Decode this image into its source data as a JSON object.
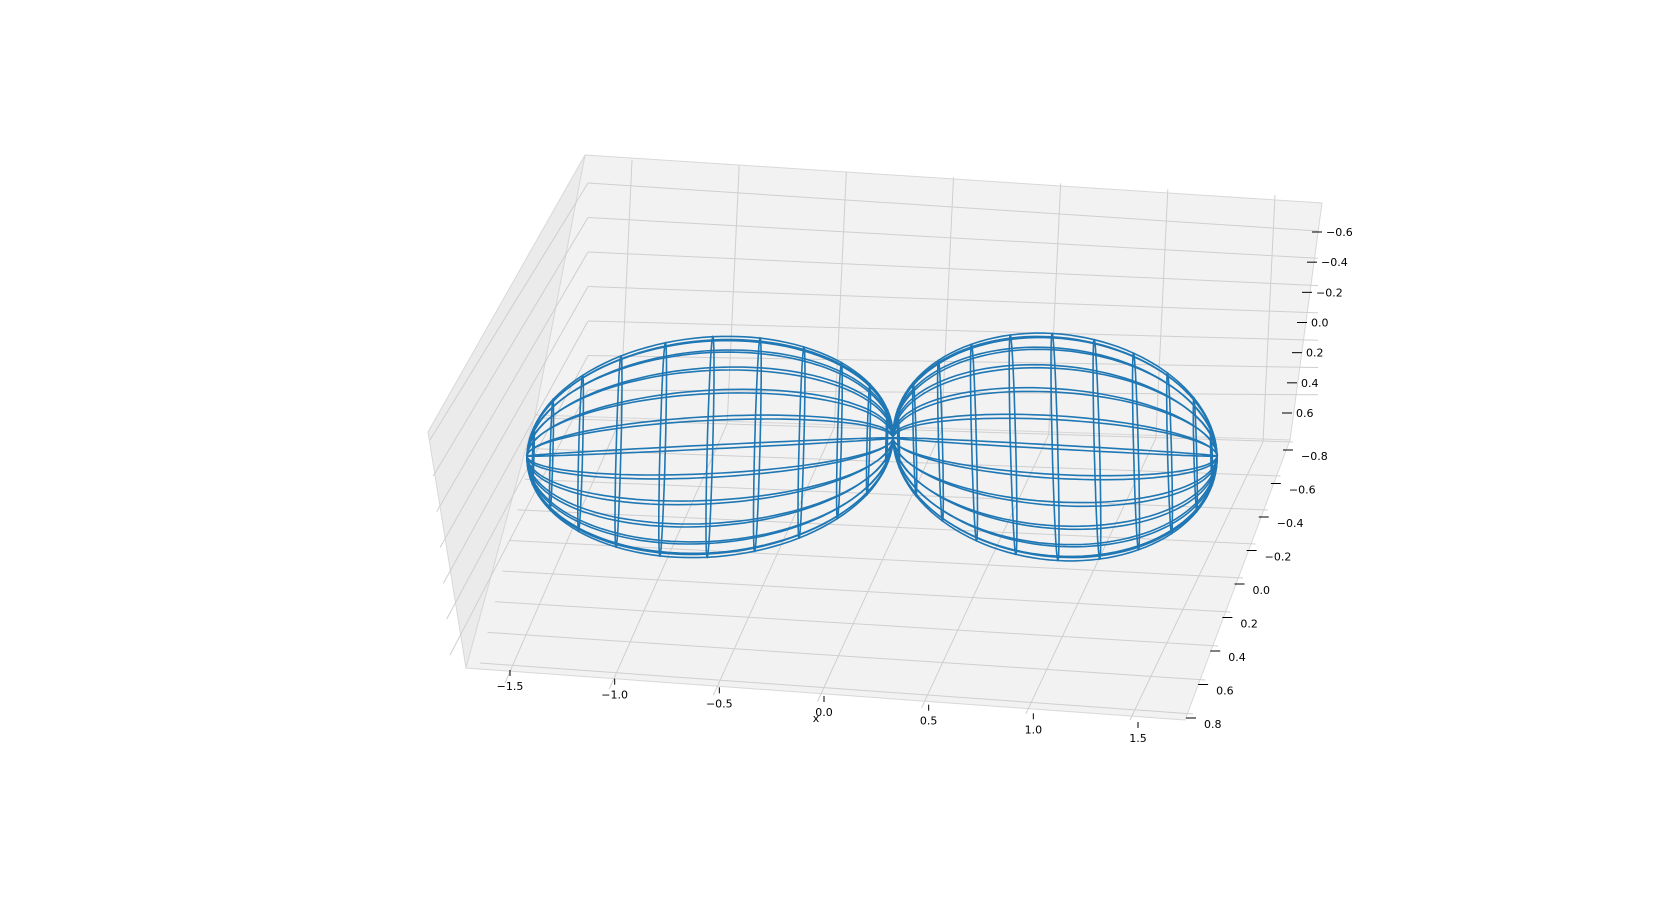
{
  "chart_data": {
    "type": "wireframe-3d",
    "title": "",
    "xlabel": "x",
    "ylabel": "",
    "zlabel": "",
    "x_ticks": [
      "−1.5",
      "−1.0",
      "−0.5",
      "0.0",
      "0.5",
      "1.0",
      "1.5"
    ],
    "y_ticks": [
      "−0.8",
      "−0.6",
      "−0.4",
      "−0.2",
      "0.0",
      "0.2",
      "0.4",
      "0.6",
      "0.8"
    ],
    "z_ticks": [
      "−0.6",
      "−0.4",
      "−0.2",
      "0.0",
      "0.2",
      "0.4",
      "0.6"
    ],
    "xlim": [
      -1.7,
      1.7
    ],
    "ylim": [
      -0.85,
      0.85
    ],
    "zlim": [
      -0.7,
      0.7
    ],
    "surface": "two lobes touching at the origin (dipole-like), drawn as a wireframe of ellipses",
    "lobes": [
      {
        "center_x": -1.0,
        "rings": 12
      },
      {
        "center_x": 1.0,
        "rings": 12
      }
    ],
    "line_color": "#1f77b4",
    "pane_color": "#f2f2f2",
    "grid": true
  }
}
